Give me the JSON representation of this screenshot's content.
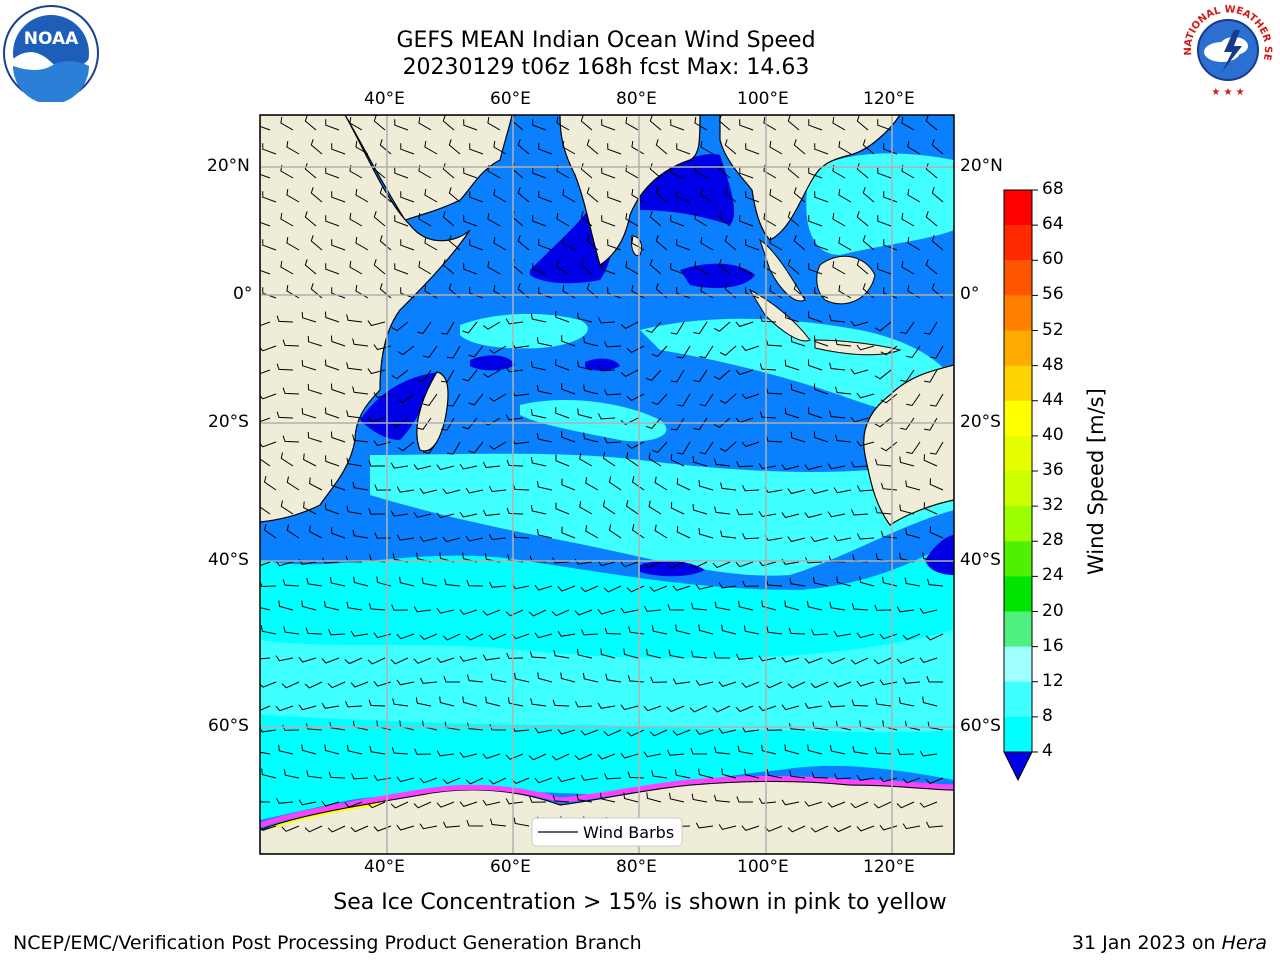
{
  "title": {
    "line1": "GEFS MEAN Indian Ocean Wind Speed",
    "line2": "20230129 t06z 168h fcst   Max: 14.63"
  },
  "map": {
    "lon_labels": [
      "40°E",
      "60°E",
      "80°E",
      "100°E",
      "120°E"
    ],
    "lat_labels_left": [
      "20°N",
      "0°",
      "20°S",
      "40°S",
      "60°S"
    ],
    "lat_labels_right": [
      "20°N",
      "0°",
      "20°S",
      "40°S",
      "60°S"
    ],
    "legend_label": "Wind Barbs",
    "colors": {
      "land": "#efedd8",
      "wind_4_8": "#0a80ff",
      "wind_0_4": "#0000e6",
      "wind_8_12": "#00ffff",
      "wind_12_16": "#40ffff",
      "wind_16_20": "#a0ffff",
      "ice": "#ff40ff"
    }
  },
  "colorbar": {
    "title": "Wind Speed [m/s]",
    "ticks": [
      "68",
      "64",
      "60",
      "56",
      "52",
      "48",
      "44",
      "40",
      "36",
      "32",
      "28",
      "24",
      "20",
      "16",
      "12",
      "8",
      "4"
    ],
    "colors": [
      "#ff0000",
      "#ff2a00",
      "#ff5500",
      "#ff8000",
      "#ffaa00",
      "#ffd400",
      "#ffff00",
      "#e6ff00",
      "#ccff00",
      "#9cff00",
      "#50f000",
      "#00e600",
      "#50f080",
      "#a0ffff",
      "#40ffff",
      "#00ffff",
      "#0a80ff"
    ],
    "under_color": "#0000e6"
  },
  "subnote": "Sea Ice Concentration > 15% is shown in pink to yellow",
  "footer": {
    "left": "NCEP/EMC/Verification Post Processing Product Generation Branch",
    "right_date": "31 Jan 2023 on ",
    "right_host": "Hera"
  },
  "logos": {
    "left": "noaa-logo",
    "right": "nws-logo",
    "right_text": "NATIONAL WEATHER SERVICE"
  }
}
